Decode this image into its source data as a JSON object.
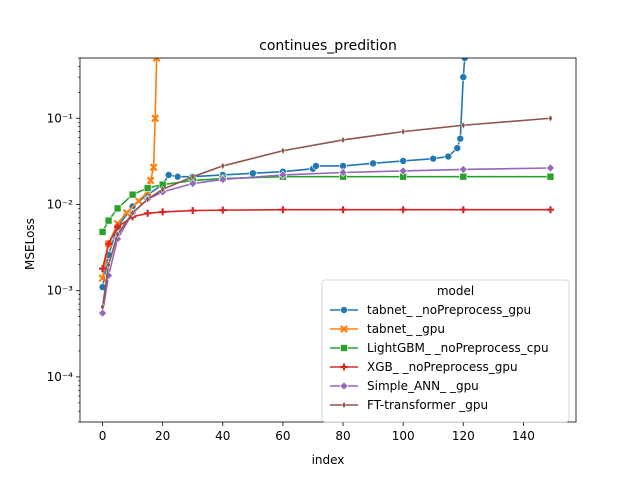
{
  "chart_data": {
    "type": "line",
    "title": "continues_predition",
    "xlabel": "index",
    "ylabel": "MSELoss",
    "xlim": [
      -7.5,
      157.5
    ],
    "ylim": [
      3e-05,
      0.5
    ],
    "yscale": "log",
    "grid": false,
    "legend_title": "model",
    "legend_position": "lower-right",
    "x_ticks": [
      0,
      20,
      40,
      60,
      80,
      100,
      120,
      140
    ],
    "x_tick_labels": [
      "0",
      "20",
      "40",
      "60",
      "80",
      "100",
      "120",
      "140"
    ],
    "y_ticks": [
      0.0001,
      0.001,
      0.01,
      0.1
    ],
    "y_tick_labels": [
      "10⁻⁴",
      "10⁻³",
      "10⁻²",
      "10⁻¹"
    ],
    "series": [
      {
        "name": "tabnet_ _noPreprocess_gpu",
        "color": "#1f77b4",
        "marker": "circle",
        "x": [
          0,
          2,
          5,
          10,
          15,
          20,
          22,
          25,
          30,
          40,
          50,
          60,
          70,
          71,
          80,
          90,
          100,
          110,
          115,
          118,
          119,
          120,
          120.5
        ],
        "y": [
          0.0011,
          0.0026,
          0.0055,
          0.0095,
          0.013,
          0.017,
          0.022,
          0.021,
          0.021,
          0.022,
          0.023,
          0.024,
          0.026,
          0.028,
          0.028,
          0.03,
          0.032,
          0.034,
          0.036,
          0.045,
          0.058,
          0.3,
          0.5
        ]
      },
      {
        "name": "tabnet_ _gpu",
        "color": "#ff7f0e",
        "marker": "x",
        "x": [
          0,
          2,
          5,
          8,
          12,
          15,
          16,
          17,
          17.5,
          18
        ],
        "y": [
          0.0014,
          0.0035,
          0.006,
          0.008,
          0.011,
          0.014,
          0.019,
          0.027,
          0.1,
          0.5
        ]
      },
      {
        "name": "LightGBM_ _noPreprocess_cpu",
        "color": "#2ca02c",
        "marker": "square",
        "x": [
          0,
          2,
          5,
          10,
          15,
          20,
          30,
          40,
          60,
          80,
          100,
          120,
          149
        ],
        "y": [
          0.0048,
          0.0065,
          0.009,
          0.013,
          0.0155,
          0.017,
          0.019,
          0.02,
          0.021,
          0.021,
          0.021,
          0.021,
          0.021
        ]
      },
      {
        "name": "XGB_ _noPreprocess_gpu",
        "color": "#d62728",
        "marker": "plus",
        "x": [
          0,
          2,
          5,
          10,
          15,
          20,
          30,
          40,
          60,
          80,
          100,
          120,
          149
        ],
        "y": [
          0.0018,
          0.0035,
          0.0055,
          0.0072,
          0.0079,
          0.0082,
          0.0085,
          0.0086,
          0.0087,
          0.0087,
          0.0087,
          0.0087,
          0.0087
        ]
      },
      {
        "name": "Simple_ANN_ _gpu",
        "color": "#9467bd",
        "marker": "diamond",
        "x": [
          0,
          2,
          5,
          10,
          15,
          20,
          30,
          40,
          60,
          80,
          100,
          120,
          149
        ],
        "y": [
          0.00055,
          0.0015,
          0.004,
          0.008,
          0.0115,
          0.014,
          0.0175,
          0.0195,
          0.022,
          0.0235,
          0.0245,
          0.0255,
          0.0265
        ]
      },
      {
        "name": "FT-transformer _gpu",
        "color": "#8c564b",
        "marker": "thin_diamond",
        "x": [
          0,
          2,
          5,
          10,
          15,
          20,
          30,
          40,
          60,
          80,
          100,
          120,
          149
        ],
        "y": [
          0.00065,
          0.002,
          0.0045,
          0.008,
          0.0115,
          0.015,
          0.021,
          0.028,
          0.042,
          0.056,
          0.07,
          0.083,
          0.1
        ]
      }
    ]
  }
}
